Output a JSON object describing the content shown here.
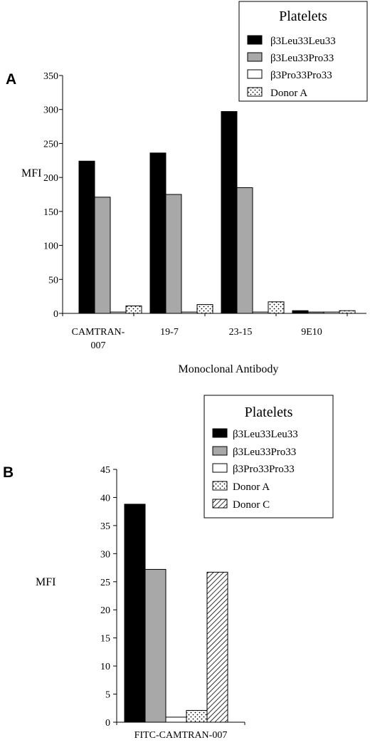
{
  "chart_data": [
    {
      "panel": "A",
      "type": "bar",
      "ylabel": "MFI",
      "xlabel": "Monoclonal Antibody",
      "ylim": [
        0,
        350
      ],
      "yticks": [
        0,
        50,
        100,
        150,
        200,
        250,
        300,
        350
      ],
      "categories": [
        "CAMTRAN-007",
        "19-7",
        "23-15",
        "9E10"
      ],
      "category_labels": [
        [
          "CAMTRAN-",
          "007"
        ],
        [
          "19-7"
        ],
        [
          "23-15"
        ],
        [
          "9E10"
        ]
      ],
      "legend": {
        "title": "Platelets",
        "position": "top-right"
      },
      "series": [
        {
          "name": "β3Leu33Leu33",
          "pattern": "solid-black",
          "values": [
            224,
            236,
            297,
            4
          ]
        },
        {
          "name": "β3Leu33Pro33",
          "pattern": "solid-gray",
          "values": [
            171,
            175,
            185,
            2
          ]
        },
        {
          "name": "β3Pro33Pro33",
          "pattern": "white",
          "values": [
            2,
            2,
            2,
            2
          ]
        },
        {
          "name": "Donor A",
          "pattern": "dots",
          "values": [
            11,
            13,
            17,
            4
          ]
        }
      ]
    },
    {
      "panel": "B",
      "type": "bar",
      "ylabel": "MFI",
      "xlabel": "",
      "ylim": [
        0,
        45
      ],
      "yticks": [
        0,
        5,
        10,
        15,
        20,
        25,
        30,
        35,
        40,
        45
      ],
      "categories": [
        "FITC-CAMTRAN-007"
      ],
      "category_labels": [
        [
          "FITC-CAMTRAN-007"
        ]
      ],
      "legend": {
        "title": "Platelets",
        "position": "top-right"
      },
      "series": [
        {
          "name": "β3Leu33Leu33",
          "pattern": "solid-black",
          "values": [
            38.8
          ]
        },
        {
          "name": "β3Leu33Pro33",
          "pattern": "solid-gray",
          "values": [
            27.2
          ]
        },
        {
          "name": "β3Pro33Pro33",
          "pattern": "white",
          "values": [
            0.9
          ]
        },
        {
          "name": "Donor A",
          "pattern": "dots",
          "values": [
            2.1
          ]
        },
        {
          "name": "Donor C",
          "pattern": "hatch",
          "values": [
            26.7
          ]
        }
      ]
    }
  ],
  "colors": {
    "black": "#000000",
    "gray": "#a8a8a8",
    "white": "#ffffff"
  }
}
